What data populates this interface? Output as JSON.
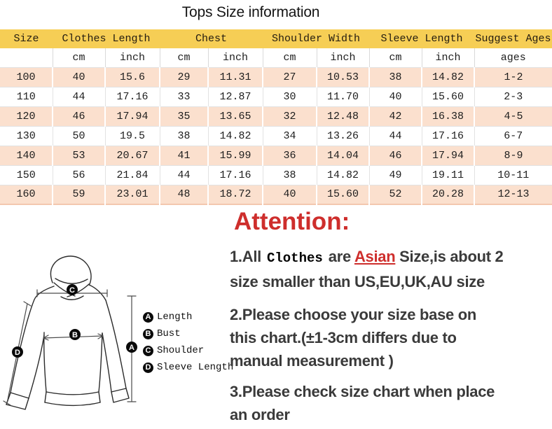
{
  "title": "Tops Size information",
  "colors": {
    "header_bg": "#F6CE55",
    "row_alt_bg": "#FBE0CE",
    "accent_red": "#CE2E2C",
    "note_text": "#3A3A3A"
  },
  "table": {
    "header_groups": [
      {
        "label": "Size",
        "colspan": 1
      },
      {
        "label": "Clothes Length",
        "colspan": 2
      },
      {
        "label": "Chest",
        "colspan": 2
      },
      {
        "label": "Shoulder Width",
        "colspan": 2
      },
      {
        "label": "Sleeve Length",
        "colspan": 2
      },
      {
        "label": "Suggest Ages",
        "colspan": 1
      }
    ],
    "subheader": [
      "",
      "cm",
      "inch",
      "cm",
      "inch",
      "cm",
      "inch",
      "cm",
      "inch",
      "ages"
    ],
    "rows": [
      [
        "100",
        "40",
        "15.6",
        "29",
        "11.31",
        "27",
        "10.53",
        "38",
        "14.82",
        "1-2"
      ],
      [
        "110",
        "44",
        "17.16",
        "33",
        "12.87",
        "30",
        "11.70",
        "40",
        "15.60",
        "2-3"
      ],
      [
        "120",
        "46",
        "17.94",
        "35",
        "13.65",
        "32",
        "12.48",
        "42",
        "16.38",
        "4-5"
      ],
      [
        "130",
        "50",
        "19.5",
        "38",
        "14.82",
        "34",
        "13.26",
        "44",
        "17.16",
        "6-7"
      ],
      [
        "140",
        "53",
        "20.67",
        "41",
        "15.99",
        "36",
        "14.04",
        "46",
        "17.94",
        "8-9"
      ],
      [
        "150",
        "56",
        "21.84",
        "44",
        "17.16",
        "38",
        "14.82",
        "49",
        "19.11",
        "10-11"
      ],
      [
        "160",
        "59",
        "23.01",
        "48",
        "18.72",
        "40",
        "15.60",
        "52",
        "20.28",
        "12-13"
      ]
    ]
  },
  "diagram": {
    "legend": [
      {
        "key": "A",
        "label": "Length"
      },
      {
        "key": "B",
        "label": "Bust"
      },
      {
        "key": "C",
        "label": "Shoulder"
      },
      {
        "key": "D",
        "label": "Sleeve Length"
      }
    ]
  },
  "notes": {
    "attention": "Attention:",
    "note1_a": "1.All",
    "note1_clothes": "Clothes",
    "note1_b": "are",
    "note1_asian": "Asian",
    "note1_c": "Size,is about 2",
    "note1_line2": "size smaller than US,EU,UK,AU size",
    "note2_lines": [
      "2.Please choose your size base on",
      "this chart.(±1-3cm differs due to",
      "manual measurement )"
    ],
    "note3_lines": [
      "3.Please check size chart when place",
      "an order"
    ]
  }
}
